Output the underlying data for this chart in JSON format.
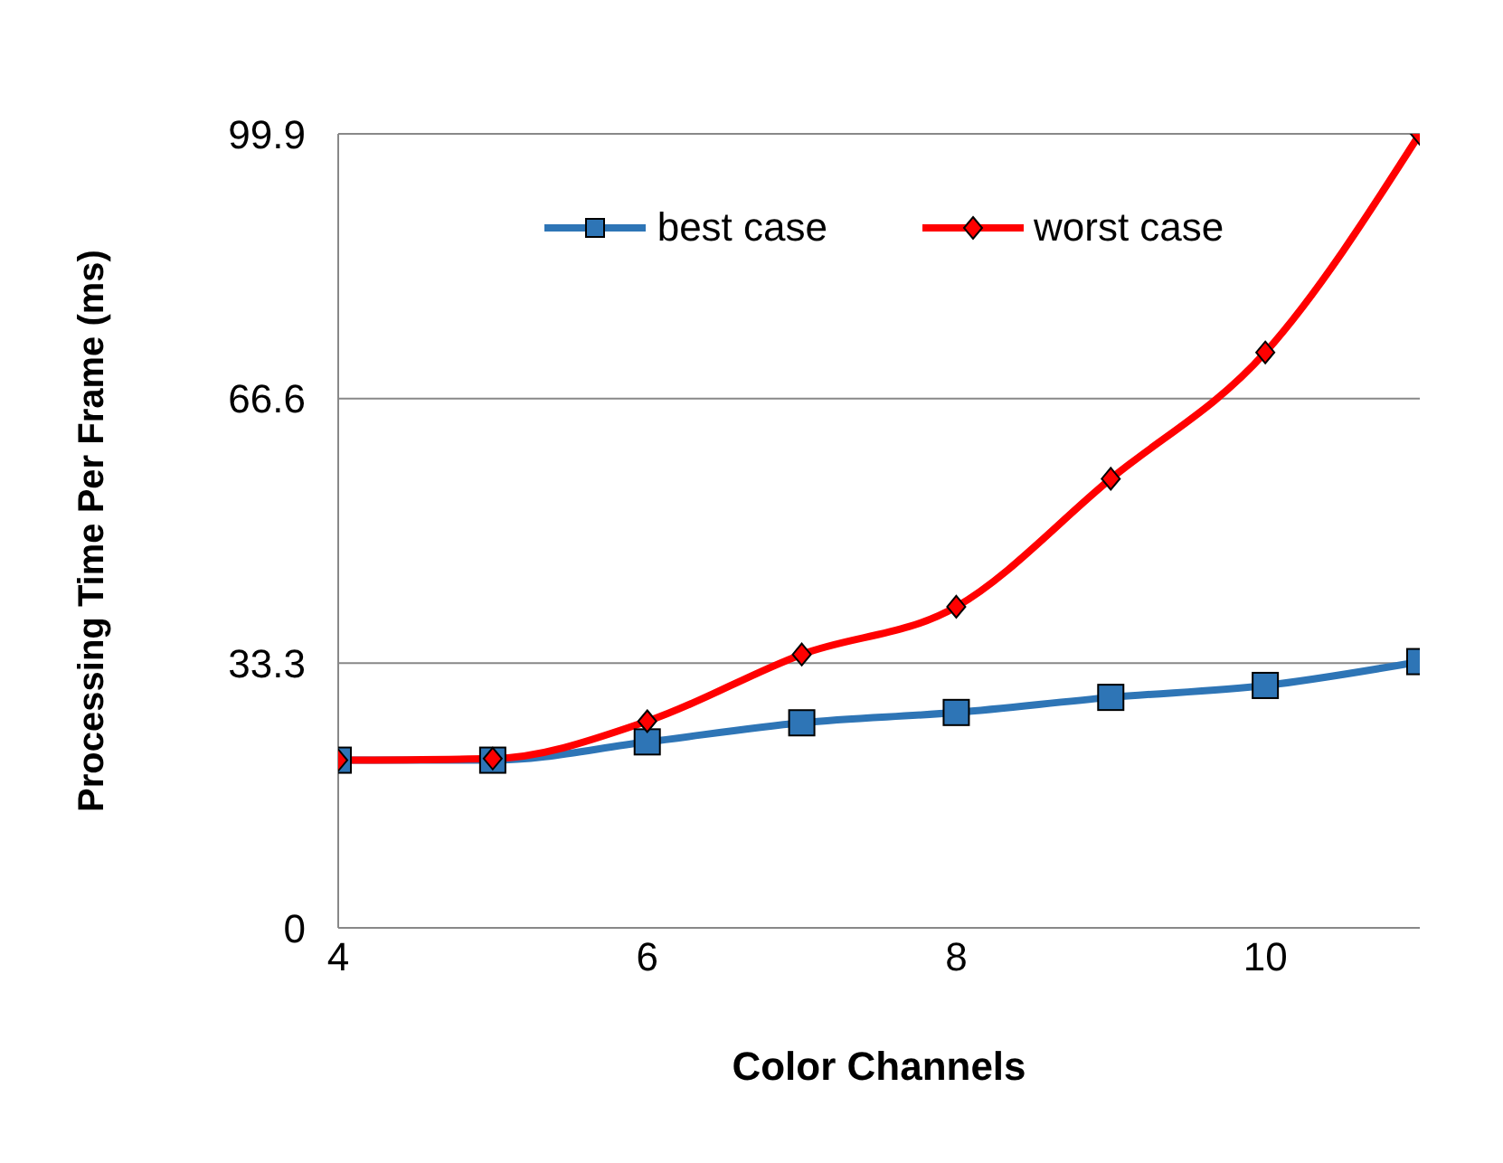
{
  "chart_data": {
    "type": "line",
    "xlabel": "Color Channels",
    "ylabel": "Processing Time Per Frame  (ms)",
    "x": [
      4,
      5,
      6,
      7,
      8,
      9,
      10,
      11
    ],
    "series": [
      {
        "name": "best case",
        "color": "#2e75b6",
        "marker": "square",
        "values": [
          21.1,
          21.1,
          23.4,
          25.8,
          27.1,
          29.0,
          30.5,
          33.5
        ]
      },
      {
        "name": "worst case",
        "color": "#ff0000",
        "marker": "diamond",
        "values": [
          21.1,
          21.3,
          26.0,
          34.4,
          40.4,
          56.5,
          72.4,
          99.9
        ]
      }
    ],
    "xlim": [
      4,
      11
    ],
    "xticks": [
      4,
      6,
      8,
      10
    ],
    "ylim": [
      0,
      99.9
    ],
    "yticks": [
      0,
      33.3,
      66.6,
      99.9
    ],
    "grid": "y",
    "legend": "top"
  }
}
